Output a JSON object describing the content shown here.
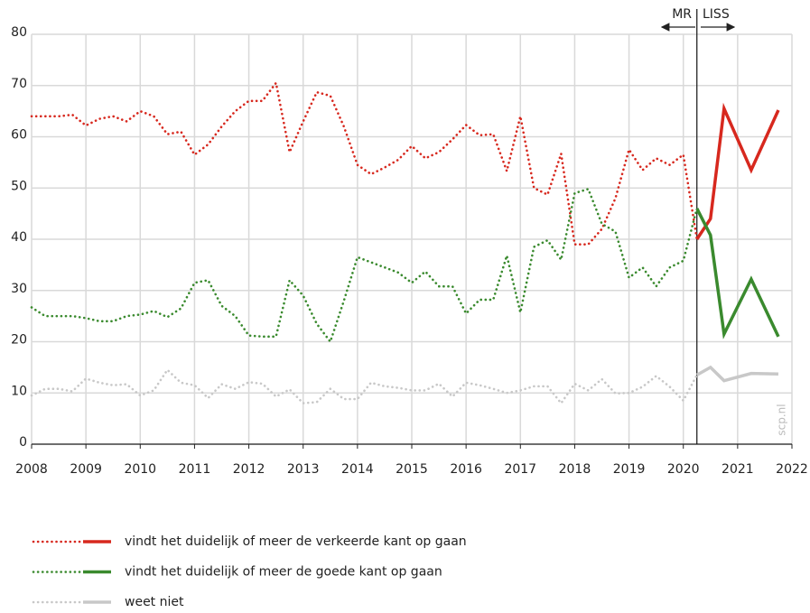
{
  "chart_data": {
    "type": "line",
    "x": [
      2008,
      2008.25,
      2008.5,
      2008.75,
      2009,
      2009.25,
      2009.5,
      2009.75,
      2010,
      2010.25,
      2010.5,
      2010.75,
      2011,
      2011.25,
      2011.5,
      2011.75,
      2012,
      2012.25,
      2012.5,
      2012.75,
      2013,
      2013.25,
      2013.5,
      2013.75,
      2014,
      2014.25,
      2014.5,
      2014.75,
      2015,
      2015.25,
      2015.5,
      2015.75,
      2016,
      2016.25,
      2016.5,
      2016.75,
      2017,
      2017.25,
      2017.5,
      2017.75,
      2018,
      2018.25,
      2018.5,
      2018.75,
      2019,
      2019.25,
      2019.5,
      2019.75,
      2020,
      2020.25
    ],
    "x_liss": [
      2020.25,
      2020.5,
      2020.75,
      2021.25,
      2021.75
    ],
    "series": [
      {
        "name": "vindt het duidelijk of meer de verkeerde kant op gaan",
        "color": "#d7281e",
        "values": [
          64,
          64,
          64,
          64.3,
          62.2,
          63.5,
          64,
          63,
          65,
          64,
          60.5,
          61,
          56.5,
          58.5,
          62,
          65,
          67,
          67,
          70.5,
          57,
          63,
          68.7,
          68,
          62,
          54.5,
          52.7,
          54,
          55.5,
          58.2,
          55.8,
          57,
          59.5,
          62.3,
          60.3,
          60.5,
          53.3,
          64,
          50,
          48.7,
          56.7,
          39,
          39,
          42,
          48,
          57.5,
          53.5,
          55.8,
          54.5,
          56.5,
          40
        ],
        "values_liss": [
          40,
          44,
          65.5,
          53.5,
          65.2
        ]
      },
      {
        "name": "vindt het duidelijk of meer de goede kant op gaan",
        "color": "#3a8a2e",
        "values": [
          26.7,
          25,
          25,
          25,
          24.6,
          24,
          24,
          25,
          25.3,
          26,
          24.8,
          26.5,
          31.5,
          32,
          27,
          25,
          21.2,
          21,
          21,
          32,
          29,
          23.5,
          20,
          28,
          36.5,
          35.5,
          34.5,
          33.5,
          31.5,
          33.7,
          30.8,
          30.8,
          25.5,
          28.2,
          28.2,
          36.8,
          25.7,
          38.5,
          39.8,
          36,
          49,
          49.8,
          43,
          41.5,
          32.5,
          34.5,
          30.8,
          34.5,
          35.8,
          46
        ],
        "values_liss": [
          46,
          40.8,
          21.5,
          32.2,
          21
        ]
      },
      {
        "name": "weet niet",
        "color": "#c8c8c8",
        "values": [
          9.5,
          10.8,
          10.8,
          10.3,
          12.8,
          12,
          11.5,
          11.7,
          9.5,
          10.5,
          14.5,
          12,
          11.5,
          9,
          11.7,
          10.8,
          12.1,
          11.8,
          9.3,
          10.7,
          8,
          8.2,
          10.8,
          8.8,
          8.8,
          12,
          11.3,
          11,
          10.5,
          10.5,
          11.8,
          9.3,
          12,
          11.5,
          10.8,
          10,
          10.5,
          11.3,
          11.3,
          8,
          11.8,
          10.5,
          12.7,
          9.9,
          10,
          11.2,
          13.3,
          11.2,
          8.5,
          13.5
        ],
        "values_liss": [
          13.5,
          15,
          12.4,
          13.8,
          13.7
        ]
      }
    ],
    "divider_x": 2020.25,
    "annotations": [
      "MR",
      "LISS",
      "scp.nl"
    ],
    "xlim": [
      2008,
      2022
    ],
    "xticks": [
      2008,
      2009,
      2010,
      2011,
      2012,
      2013,
      2014,
      2015,
      2016,
      2017,
      2018,
      2019,
      2020,
      2021,
      2022
    ],
    "ylim": [
      0,
      80
    ],
    "yticks": [
      0,
      10,
      20,
      30,
      40,
      50,
      60,
      70,
      80
    ],
    "grid": true
  }
}
